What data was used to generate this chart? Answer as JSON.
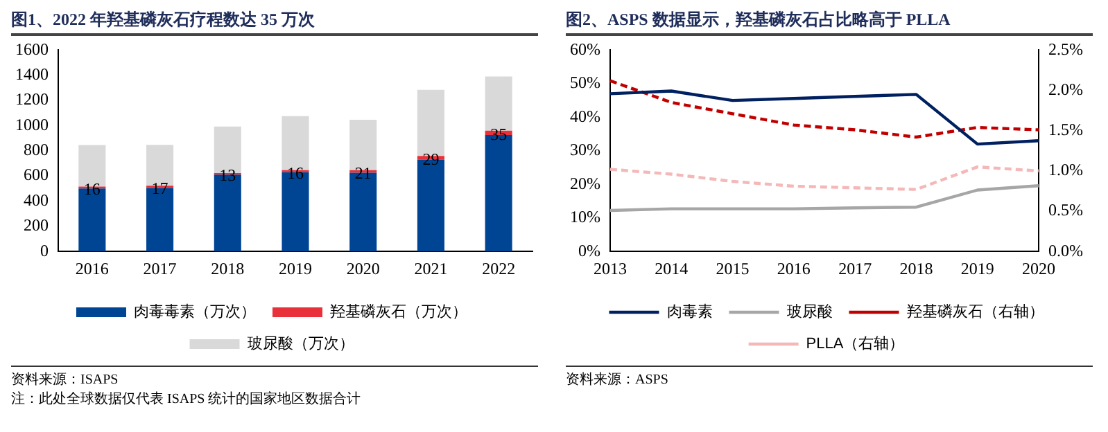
{
  "chart_data": [
    {
      "type": "bar",
      "title": "图1、2022 年羟基磷灰石疗程数达 35 万次",
      "categories": [
        "2016",
        "2017",
        "2018",
        "2019",
        "2020",
        "2021",
        "2022"
      ],
      "stacked": true,
      "legend": "bottom",
      "grid": false,
      "series": [
        {
          "name": "肉毒毒素（万次）",
          "color": "#004494",
          "values": [
            500,
            505,
            610,
            630,
            625,
            730,
            925
          ]
        },
        {
          "name": "羟基磷灰石（万次）",
          "color": "#e8313a",
          "values": [
            16,
            17,
            13,
            16,
            21,
            29,
            35
          ],
          "value_labels": [
            "16",
            "17",
            "13",
            "16",
            "21",
            "29",
            "35"
          ]
        },
        {
          "name": "玻尿酸（万次）",
          "color": "#d9d9d9",
          "values": [
            330,
            325,
            370,
            430,
            400,
            525,
            430
          ]
        }
      ],
      "ylim": [
        0,
        1600
      ],
      "yticks": [
        0,
        200,
        400,
        600,
        800,
        1000,
        1200,
        1400,
        1600
      ],
      "annotations": [
        "资料来源：ISAPS",
        "注：此处全球数据仅代表 ISAPS 统计的国家地区数据合计"
      ]
    },
    {
      "type": "line",
      "title": "图2、ASPS 数据显示，羟基磷灰石占比略高于 PLLA",
      "categories": [
        "2013",
        "2014",
        "2015",
        "2016",
        "2017",
        "2018",
        "2019",
        "2020"
      ],
      "legend": "bottom",
      "grid": false,
      "marker": "none",
      "series": [
        {
          "name": "肉毒素",
          "color": "#002060",
          "line_style": "solid",
          "values": [
            47,
            47.8,
            45,
            45.6,
            46.2,
            46.8,
            32,
            33
          ]
        },
        {
          "name": "玻尿酸",
          "color": "#a6a6a6",
          "line_style": "solid",
          "values": [
            12.2,
            12.7,
            12.7,
            12.7,
            13,
            13.2,
            18.3,
            19.6
          ]
        },
        {
          "name": "羟基磷灰石（右轴）",
          "color": "#c00000",
          "line_style": "dashed",
          "axis": "y2",
          "values": [
            2.12,
            1.85,
            1.71,
            1.57,
            1.51,
            1.42,
            1.54,
            1.51
          ]
        },
        {
          "name": "PLLA（右轴）",
          "color": "#f4b8b8",
          "line_style": "dashed",
          "axis": "y2",
          "values": [
            1.02,
            0.96,
            0.87,
            0.81,
            0.79,
            0.77,
            1.05,
            1.0
          ]
        }
      ],
      "ylim": [
        0,
        60
      ],
      "yticks": [
        {
          "value": 0,
          "label": "0%"
        },
        {
          "value": 10,
          "label": "10%"
        },
        {
          "value": 20,
          "label": "20%"
        },
        {
          "value": 30,
          "label": "30%"
        },
        {
          "value": 40,
          "label": "40%"
        },
        {
          "value": 50,
          "label": "50%"
        },
        {
          "value": 60,
          "label": "60%"
        }
      ],
      "y2lim": [
        0,
        2.5
      ],
      "y2ticks": [
        {
          "value": 0,
          "label": "0.0%"
        },
        {
          "value": 0.5,
          "label": "0.5%"
        },
        {
          "value": 1,
          "label": "1.0%"
        },
        {
          "value": 1.5,
          "label": "1.5%"
        },
        {
          "value": 2,
          "label": "2.0%"
        },
        {
          "value": 2.5,
          "label": "2.5%"
        }
      ],
      "annotations": [
        "资料来源：ASPS"
      ]
    }
  ]
}
